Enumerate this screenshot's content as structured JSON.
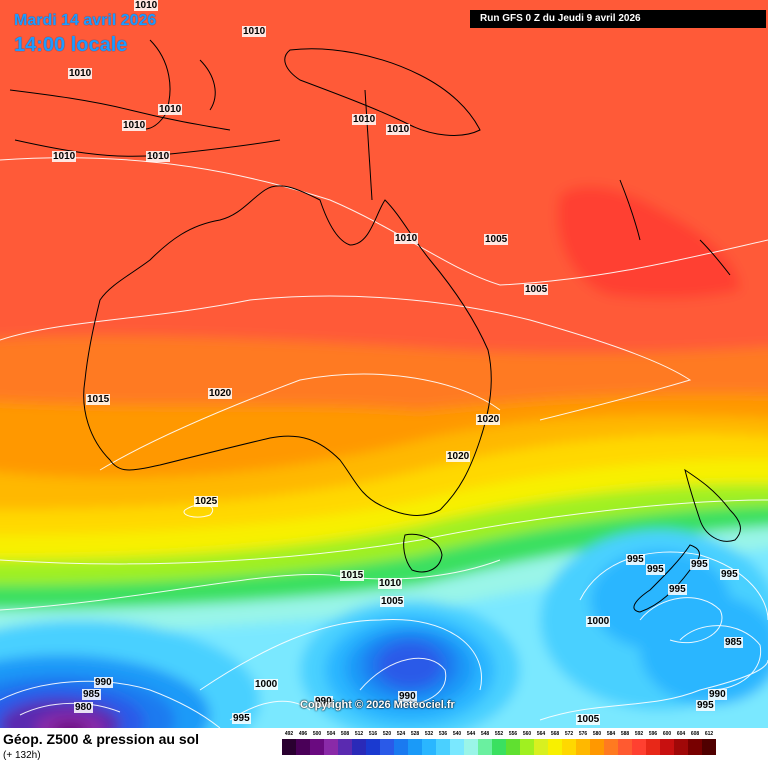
{
  "header": {
    "date": "Mardi 14 avril 2026",
    "time": "14:00 locale",
    "run": "Run GFS 0 Z du Jeudi 9 avril 2026"
  },
  "footer": {
    "title": "Géop. Z500 & pression au sol",
    "subtitle": "(+ 132h)",
    "copyright": "Copyright © 2026 Meteociel.fr"
  },
  "legend": {
    "levels": [
      "492",
      "496",
      "500",
      "504",
      "508",
      "512",
      "516",
      "520",
      "524",
      "528",
      "532",
      "536",
      "540",
      "544",
      "548",
      "552",
      "556",
      "560",
      "564",
      "568",
      "572",
      "576",
      "580",
      "584",
      "588",
      "592",
      "596",
      "600",
      "604",
      "608",
      "612"
    ],
    "colors": [
      "#2a0030",
      "#4a0058",
      "#6a0a80",
      "#8a2aa8",
      "#5a2ab0",
      "#2a2ab8",
      "#1a3ad0",
      "#2a5ae8",
      "#1a7af0",
      "#1a9af8",
      "#2ab6ff",
      "#4ad0ff",
      "#7ae8ff",
      "#9af5e8",
      "#6af0a0",
      "#3ae060",
      "#60e030",
      "#a0f020",
      "#d8f020",
      "#f8f000",
      "#ffd800",
      "#ffb800",
      "#ff9800",
      "#ff7a20",
      "#ff5a30",
      "#ff4030",
      "#e82818",
      "#c81010",
      "#a00808",
      "#780000",
      "#500000"
    ]
  },
  "isobars": [
    "1010",
    "1010",
    "1010",
    "1010",
    "1010",
    "1010",
    "1010",
    "1010",
    "1010",
    "1005",
    "1010",
    "1005",
    "1015",
    "1020",
    "1020",
    "1020",
    "1025",
    "1015",
    "1010",
    "1005",
    "995",
    "995",
    "995",
    "995",
    "995",
    "1000",
    "985",
    "990",
    "995",
    "1005",
    "1000",
    "990",
    "990",
    "990",
    "985",
    "980",
    "995"
  ]
}
